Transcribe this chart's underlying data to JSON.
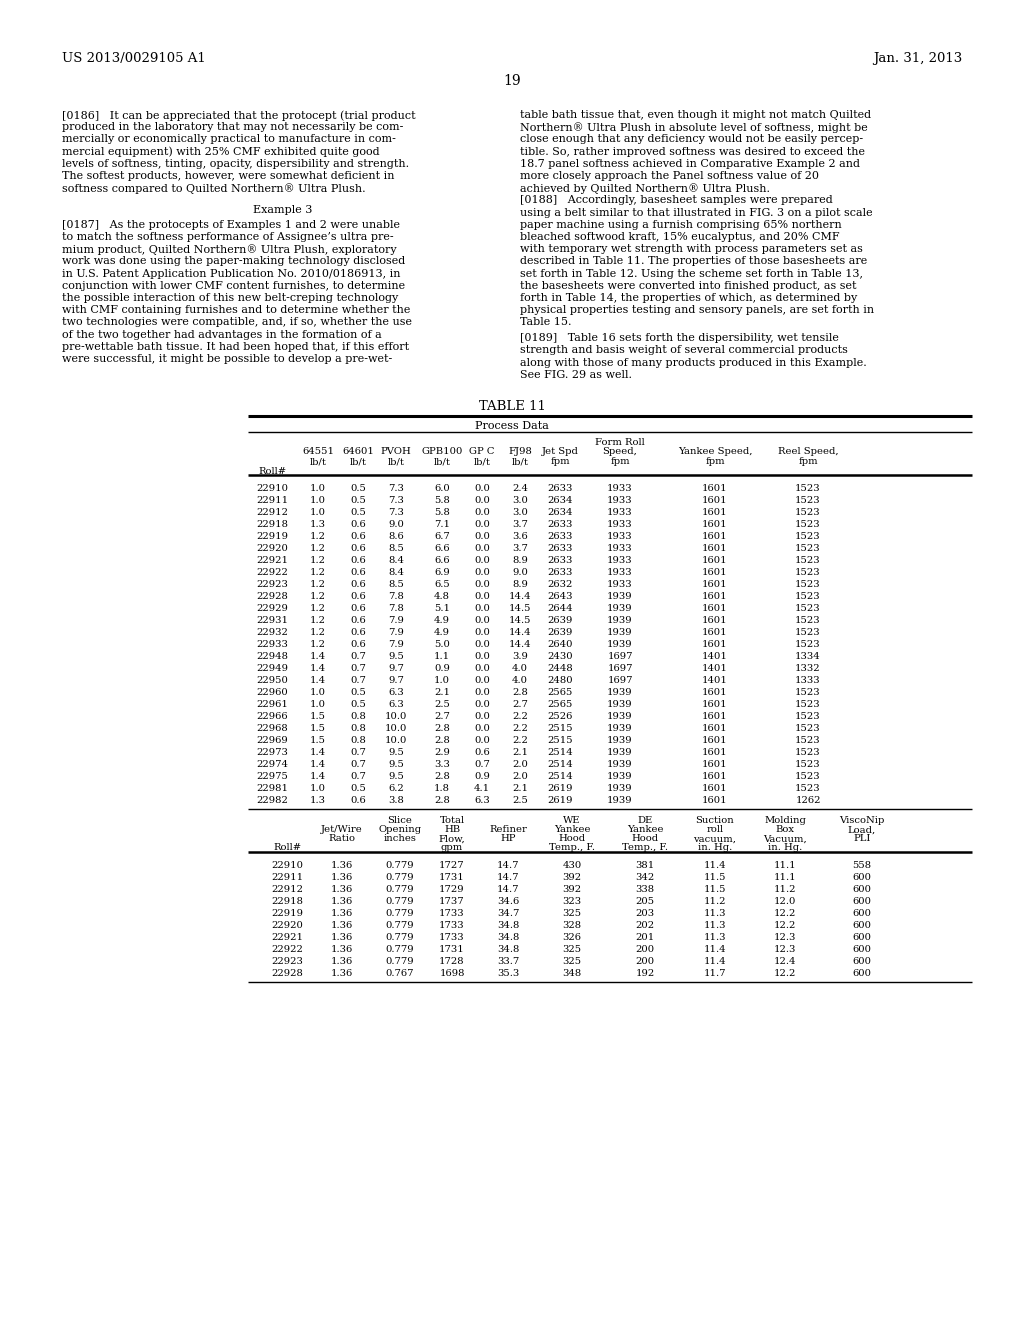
{
  "header_left": "US 2013/0029105 A1",
  "header_right": "Jan. 31, 2013",
  "page_number": "19",
  "para186_left": "[0186]   It can be appreciated that the protocept (trial product\nproduced in the laboratory that may not necessarily be com-\nmercially or economically practical to manufacture in com-\nmercial equipment) with 25% CMF exhibited quite good\nlevels of softness, tinting, opacity, dispersibility and strength.\nThe softest products, however, were somewhat deficient in\nsoftness compared to Quilted Northern® Ultra Plush.",
  "example3": "Example 3",
  "para187_left": "[0187]   As the protocepts of Examples 1 and 2 were unable\nto match the softness performance of Assignee’s ultra pre-\nmium product, Quilted Northern® Ultra Plush, exploratory\nwork was done using the paper-making technology disclosed\nin U.S. Patent Application Publication No. 2010/0186913, in\nconjunction with lower CMF content furnishes, to determine\nthe possible interaction of this new belt-creping technology\nwith CMF containing furnishes and to determine whether the\ntwo technologies were compatible, and, if so, whether the use\nof the two together had advantages in the formation of a\npre-wettable bath tissue. It had been hoped that, if this effort\nwere successful, it might be possible to develop a pre-wet-",
  "para186_right": "table bath tissue that, even though it might not match Quilted\nNorthern® Ultra Plush in absolute level of softness, might be\nclose enough that any deficiency would not be easily percep-\ntible. So, rather improved softness was desired to exceed the\n18.7 panel softness achieved in Comparative Example 2 and\nmore closely approach the Panel softness value of 20\nachieved by Quilted Northern® Ultra Plush.",
  "para188_right": "[0188]   Accordingly, basesheet samples were prepared\nusing a belt similar to that illustrated in FIG. 3 on a pilot scale\npaper machine using a furnish comprising 65% northern\nbleached softwood kraft, 15% eucalyptus, and 20% CMF\nwith temporary wet strength with process parameters set as\ndescribed in Table 11. The properties of those basesheets are\nset forth in Table 12. Using the scheme set forth in Table 13,\nthe basesheets were converted into finished product, as set\nforth in Table 14, the properties of which, as determined by\nphysical properties testing and sensory panels, are set forth in\nTable 15.",
  "para189_right": "[0189]   Table 16 sets forth the dispersibility, wet tensile\nstrength and basis weight of several commercial products\nalong with those of many products produced in this Example.\nSee FIG. 29 as well.",
  "table_title": "TABLE 11",
  "table_header1": "Process Data",
  "table_data1": [
    [
      "22910",
      "1.0",
      "0.5",
      "7.3",
      "6.0",
      "0.0",
      "2.4",
      "2633",
      "1933",
      "1601",
      "1523"
    ],
    [
      "22911",
      "1.0",
      "0.5",
      "7.3",
      "5.8",
      "0.0",
      "3.0",
      "2634",
      "1933",
      "1601",
      "1523"
    ],
    [
      "22912",
      "1.0",
      "0.5",
      "7.3",
      "5.8",
      "0.0",
      "3.0",
      "2634",
      "1933",
      "1601",
      "1523"
    ],
    [
      "22918",
      "1.3",
      "0.6",
      "9.0",
      "7.1",
      "0.0",
      "3.7",
      "2633",
      "1933",
      "1601",
      "1523"
    ],
    [
      "22919",
      "1.2",
      "0.6",
      "8.6",
      "6.7",
      "0.0",
      "3.6",
      "2633",
      "1933",
      "1601",
      "1523"
    ],
    [
      "22920",
      "1.2",
      "0.6",
      "8.5",
      "6.6",
      "0.0",
      "3.7",
      "2633",
      "1933",
      "1601",
      "1523"
    ],
    [
      "22921",
      "1.2",
      "0.6",
      "8.4",
      "6.6",
      "0.0",
      "8.9",
      "2633",
      "1933",
      "1601",
      "1523"
    ],
    [
      "22922",
      "1.2",
      "0.6",
      "8.4",
      "6.9",
      "0.0",
      "9.0",
      "2633",
      "1933",
      "1601",
      "1523"
    ],
    [
      "22923",
      "1.2",
      "0.6",
      "8.5",
      "6.5",
      "0.0",
      "8.9",
      "2632",
      "1933",
      "1601",
      "1523"
    ],
    [
      "22928",
      "1.2",
      "0.6",
      "7.8",
      "4.8",
      "0.0",
      "14.4",
      "2643",
      "1939",
      "1601",
      "1523"
    ],
    [
      "22929",
      "1.2",
      "0.6",
      "7.8",
      "5.1",
      "0.0",
      "14.5",
      "2644",
      "1939",
      "1601",
      "1523"
    ],
    [
      "22931",
      "1.2",
      "0.6",
      "7.9",
      "4.9",
      "0.0",
      "14.5",
      "2639",
      "1939",
      "1601",
      "1523"
    ],
    [
      "22932",
      "1.2",
      "0.6",
      "7.9",
      "4.9",
      "0.0",
      "14.4",
      "2639",
      "1939",
      "1601",
      "1523"
    ],
    [
      "22933",
      "1.2",
      "0.6",
      "7.9",
      "5.0",
      "0.0",
      "14.4",
      "2640",
      "1939",
      "1601",
      "1523"
    ],
    [
      "22948",
      "1.4",
      "0.7",
      "9.5",
      "1.1",
      "0.0",
      "3.9",
      "2430",
      "1697",
      "1401",
      "1334"
    ],
    [
      "22949",
      "1.4",
      "0.7",
      "9.7",
      "0.9",
      "0.0",
      "4.0",
      "2448",
      "1697",
      "1401",
      "1332"
    ],
    [
      "22950",
      "1.4",
      "0.7",
      "9.7",
      "1.0",
      "0.0",
      "4.0",
      "2480",
      "1697",
      "1401",
      "1333"
    ],
    [
      "22960",
      "1.0",
      "0.5",
      "6.3",
      "2.1",
      "0.0",
      "2.8",
      "2565",
      "1939",
      "1601",
      "1523"
    ],
    [
      "22961",
      "1.0",
      "0.5",
      "6.3",
      "2.5",
      "0.0",
      "2.7",
      "2565",
      "1939",
      "1601",
      "1523"
    ],
    [
      "22966",
      "1.5",
      "0.8",
      "10.0",
      "2.7",
      "0.0",
      "2.2",
      "2526",
      "1939",
      "1601",
      "1523"
    ],
    [
      "22968",
      "1.5",
      "0.8",
      "10.0",
      "2.8",
      "0.0",
      "2.2",
      "2515",
      "1939",
      "1601",
      "1523"
    ],
    [
      "22969",
      "1.5",
      "0.8",
      "10.0",
      "2.8",
      "0.0",
      "2.2",
      "2515",
      "1939",
      "1601",
      "1523"
    ],
    [
      "22973",
      "1.4",
      "0.7",
      "9.5",
      "2.9",
      "0.6",
      "2.1",
      "2514",
      "1939",
      "1601",
      "1523"
    ],
    [
      "22974",
      "1.4",
      "0.7",
      "9.5",
      "3.3",
      "0.7",
      "2.0",
      "2514",
      "1939",
      "1601",
      "1523"
    ],
    [
      "22975",
      "1.4",
      "0.7",
      "9.5",
      "2.8",
      "0.9",
      "2.0",
      "2514",
      "1939",
      "1601",
      "1523"
    ],
    [
      "22981",
      "1.0",
      "0.5",
      "6.2",
      "1.8",
      "4.1",
      "2.1",
      "2619",
      "1939",
      "1601",
      "1523"
    ],
    [
      "22982",
      "1.3",
      "0.6",
      "3.8",
      "2.8",
      "6.3",
      "2.5",
      "2619",
      "1939",
      "1601",
      "1262"
    ]
  ],
  "table_data2": [
    [
      "22910",
      "1.36",
      "0.779",
      "1727",
      "14.7",
      "430",
      "381",
      "11.4",
      "11.1",
      "558"
    ],
    [
      "22911",
      "1.36",
      "0.779",
      "1731",
      "14.7",
      "392",
      "342",
      "11.5",
      "11.1",
      "600"
    ],
    [
      "22912",
      "1.36",
      "0.779",
      "1729",
      "14.7",
      "392",
      "338",
      "11.5",
      "11.2",
      "600"
    ],
    [
      "22918",
      "1.36",
      "0.779",
      "1737",
      "34.6",
      "323",
      "205",
      "11.2",
      "12.0",
      "600"
    ],
    [
      "22919",
      "1.36",
      "0.779",
      "1733",
      "34.7",
      "325",
      "203",
      "11.3",
      "12.2",
      "600"
    ],
    [
      "22920",
      "1.36",
      "0.779",
      "1733",
      "34.8",
      "328",
      "202",
      "11.3",
      "12.2",
      "600"
    ],
    [
      "22921",
      "1.36",
      "0.779",
      "1733",
      "34.8",
      "326",
      "201",
      "11.3",
      "12.3",
      "600"
    ],
    [
      "22922",
      "1.36",
      "0.779",
      "1731",
      "34.8",
      "325",
      "200",
      "11.4",
      "12.3",
      "600"
    ],
    [
      "22923",
      "1.36",
      "0.779",
      "1728",
      "33.7",
      "325",
      "200",
      "11.4",
      "12.4",
      "600"
    ],
    [
      "22928",
      "1.36",
      "0.767",
      "1698",
      "35.3",
      "348",
      "192",
      "11.7",
      "12.2",
      "600"
    ]
  ],
  "body_fs": 8.0,
  "table_fs": 7.2,
  "header_fs": 9.5
}
